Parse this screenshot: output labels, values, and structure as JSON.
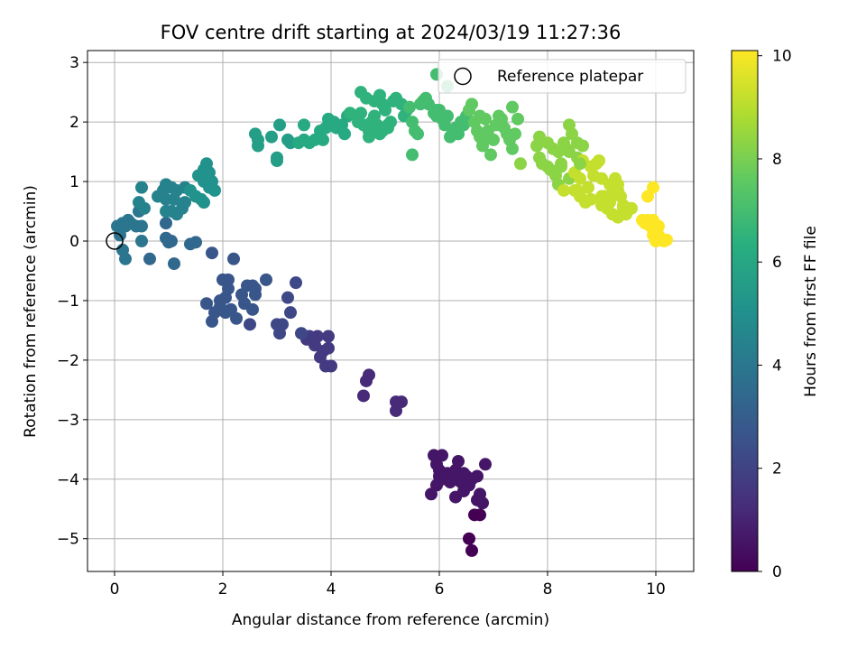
{
  "chart_data": {
    "type": "scatter",
    "title": "FOV centre drift starting at 2024/03/19 11:27:36",
    "xlabel": "Angular distance from reference (arcmin)",
    "ylabel": "Rotation from reference (arcmin)",
    "xlim": [
      -0.5,
      10.7
    ],
    "ylim": [
      -5.55,
      3.2
    ],
    "xticks": [
      0,
      2,
      4,
      6,
      8,
      10
    ],
    "yticks": [
      -5,
      -4,
      -3,
      -2,
      -1,
      0,
      1,
      2,
      3
    ],
    "grid": true,
    "legend": {
      "position": "top-right",
      "entries": [
        {
          "label": "Reference platepar",
          "marker": "open-circle",
          "x": 0,
          "y": 0
        }
      ]
    },
    "colorbar": {
      "label": "Hours from first FF file",
      "range": [
        0,
        10.1
      ],
      "ticks": [
        0,
        2,
        4,
        6,
        8,
        10
      ],
      "colormap": "viridis"
    },
    "point_color_encodes": "Hours from first FF file",
    "series": [
      {
        "points": [
          [
            6.6,
            -5.2
          ],
          [
            6.55,
            -5.0
          ],
          [
            6.65,
            -4.6
          ],
          [
            6.75,
            -4.6
          ],
          [
            6.8,
            -4.4
          ],
          [
            6.7,
            -4.35
          ],
          [
            6.75,
            -4.25
          ],
          [
            6.45,
            -4.2
          ],
          [
            6.3,
            -4.3
          ],
          [
            5.85,
            -4.25
          ],
          [
            5.95,
            -4.1
          ],
          [
            6.05,
            -4.0
          ],
          [
            6.2,
            -4.05
          ],
          [
            6.25,
            -3.95
          ],
          [
            6.35,
            -4.0
          ],
          [
            6.4,
            -4.05
          ],
          [
            6.5,
            -3.95
          ],
          [
            6.55,
            -4.1
          ],
          [
            6.6,
            -4.0
          ],
          [
            6.7,
            -3.95
          ],
          [
            6.45,
            -3.9
          ],
          [
            6.3,
            -3.85
          ],
          [
            6.15,
            -3.9
          ],
          [
            6.0,
            -3.85
          ],
          [
            5.95,
            -3.75
          ],
          [
            5.9,
            -3.6
          ],
          [
            6.05,
            -3.6
          ],
          [
            6.35,
            -3.7
          ],
          [
            6.85,
            -3.75
          ],
          [
            6.0,
            -3.95
          ],
          [
            5.2,
            -2.85
          ],
          [
            5.2,
            -2.7
          ],
          [
            5.3,
            -2.7
          ],
          [
            4.6,
            -2.6
          ],
          [
            4.65,
            -2.35
          ],
          [
            4.7,
            -2.25
          ],
          [
            3.9,
            -2.1
          ],
          [
            4.0,
            -2.1
          ],
          [
            3.8,
            -1.95
          ],
          [
            3.85,
            -1.85
          ],
          [
            3.95,
            -1.8
          ],
          [
            3.7,
            -1.75
          ],
          [
            3.75,
            -1.6
          ],
          [
            3.55,
            -1.65
          ],
          [
            3.6,
            -1.6
          ],
          [
            3.45,
            -1.55
          ],
          [
            3.95,
            -1.6
          ],
          [
            3.05,
            -1.55
          ],
          [
            3.05,
            -1.45
          ],
          [
            3.1,
            -1.4
          ],
          [
            3.0,
            -1.4
          ],
          [
            3.25,
            -1.2
          ],
          [
            3.2,
            -0.95
          ],
          [
            3.35,
            -0.7
          ],
          [
            2.8,
            -0.65
          ],
          [
            2.6,
            -0.8
          ],
          [
            2.6,
            -0.9
          ],
          [
            2.55,
            -1.15
          ],
          [
            2.5,
            -1.4
          ],
          [
            2.4,
            -1.05
          ],
          [
            2.35,
            -0.9
          ],
          [
            2.45,
            -0.75
          ],
          [
            2.55,
            -0.75
          ],
          [
            2.25,
            -1.3
          ],
          [
            2.15,
            -1.15
          ],
          [
            2.05,
            -1.2
          ],
          [
            1.95,
            -1.1
          ],
          [
            1.95,
            -1.0
          ],
          [
            1.85,
            -1.2
          ],
          [
            1.8,
            -1.35
          ],
          [
            1.7,
            -1.05
          ],
          [
            2.0,
            -0.65
          ],
          [
            2.1,
            -0.65
          ],
          [
            2.1,
            -0.8
          ],
          [
            2.05,
            -0.95
          ],
          [
            2.2,
            -0.3
          ],
          [
            1.8,
            -0.2
          ],
          [
            1.5,
            -0.02
          ],
          [
            1.4,
            -0.05
          ],
          [
            1.05,
            0.0
          ],
          [
            0.95,
            0.05
          ],
          [
            1.0,
            -0.02
          ],
          [
            0.65,
            -0.3
          ],
          [
            1.1,
            -0.38
          ],
          [
            0.5,
            0.0
          ],
          [
            0.2,
            -0.3
          ],
          [
            0.15,
            -0.15
          ],
          [
            0.2,
            0.25
          ],
          [
            0.3,
            0.3
          ],
          [
            0.25,
            0.35
          ],
          [
            0.15,
            0.3
          ],
          [
            0.05,
            0.25
          ],
          [
            0.1,
            0.1
          ],
          [
            0.4,
            0.25
          ],
          [
            0.5,
            0.25
          ],
          [
            0.45,
            0.5
          ],
          [
            0.55,
            0.55
          ],
          [
            0.45,
            0.65
          ],
          [
            0.5,
            0.9
          ],
          [
            0.95,
            0.3
          ],
          [
            0.95,
            0.5
          ],
          [
            1.05,
            0.5
          ],
          [
            1.15,
            0.45
          ],
          [
            1.25,
            0.55
          ],
          [
            1.3,
            0.65
          ],
          [
            1.1,
            0.7
          ],
          [
            0.95,
            0.7
          ],
          [
            0.8,
            0.75
          ],
          [
            0.9,
            0.85
          ],
          [
            0.95,
            0.95
          ],
          [
            1.05,
            0.9
          ],
          [
            1.15,
            0.85
          ],
          [
            1.3,
            0.9
          ],
          [
            1.4,
            0.85
          ],
          [
            1.5,
            0.75
          ],
          [
            1.6,
            0.7
          ],
          [
            1.65,
            0.65
          ],
          [
            1.55,
            1.1
          ],
          [
            1.65,
            1.2
          ],
          [
            1.7,
            1.3
          ],
          [
            1.75,
            1.15
          ],
          [
            1.65,
            1.0
          ],
          [
            1.75,
            0.9
          ],
          [
            1.85,
            0.85
          ],
          [
            1.8,
            1.0
          ],
          [
            1.7,
            1.05
          ],
          [
            2.6,
            1.8
          ],
          [
            2.65,
            1.6
          ],
          [
            2.65,
            1.7
          ],
          [
            2.9,
            1.75
          ],
          [
            3.05,
            1.95
          ],
          [
            3.0,
            1.4
          ],
          [
            3.0,
            1.35
          ],
          [
            3.2,
            1.7
          ],
          [
            3.25,
            1.65
          ],
          [
            3.4,
            1.65
          ],
          [
            3.5,
            1.7
          ],
          [
            3.6,
            1.65
          ],
          [
            3.7,
            1.7
          ],
          [
            3.5,
            1.95
          ],
          [
            3.8,
            1.85
          ],
          [
            3.85,
            1.7
          ],
          [
            3.9,
            1.9
          ],
          [
            3.95,
            2.05
          ],
          [
            4.0,
            1.95
          ],
          [
            4.05,
            2.0
          ],
          [
            4.1,
            1.9
          ],
          [
            4.2,
            1.95
          ],
          [
            4.25,
            1.8
          ],
          [
            4.3,
            2.1
          ],
          [
            4.35,
            2.15
          ],
          [
            4.5,
            2.0
          ],
          [
            4.55,
            2.15
          ],
          [
            4.6,
            1.95
          ],
          [
            4.7,
            1.75
          ],
          [
            4.7,
            1.85
          ],
          [
            4.75,
            2.0
          ],
          [
            4.8,
            2.1
          ],
          [
            4.85,
            1.95
          ],
          [
            4.9,
            1.8
          ],
          [
            4.95,
            1.85
          ],
          [
            5.0,
            1.9
          ],
          [
            5.05,
            1.95
          ],
          [
            5.1,
            2.0
          ],
          [
            4.55,
            2.5
          ],
          [
            4.65,
            2.4
          ],
          [
            4.8,
            2.35
          ],
          [
            4.9,
            2.45
          ],
          [
            4.95,
            2.3
          ],
          [
            5.0,
            2.2
          ],
          [
            5.15,
            2.35
          ],
          [
            5.2,
            2.4
          ],
          [
            5.3,
            2.3
          ],
          [
            5.35,
            2.1
          ],
          [
            5.4,
            2.2
          ],
          [
            5.45,
            2.25
          ],
          [
            5.5,
            2.0
          ],
          [
            5.55,
            1.85
          ],
          [
            5.6,
            1.8
          ],
          [
            5.5,
            1.45
          ],
          [
            5.65,
            2.3
          ],
          [
            5.7,
            2.35
          ],
          [
            5.75,
            2.4
          ],
          [
            5.8,
            2.3
          ],
          [
            5.9,
            2.15
          ],
          [
            5.95,
            2.1
          ],
          [
            6.0,
            2.2
          ],
          [
            6.05,
            2.05
          ],
          [
            6.1,
            1.95
          ],
          [
            6.15,
            2.1
          ],
          [
            6.2,
            1.75
          ],
          [
            6.25,
            1.85
          ],
          [
            6.3,
            1.9
          ],
          [
            6.35,
            1.8
          ],
          [
            6.4,
            2.0
          ],
          [
            6.45,
            1.95
          ],
          [
            6.5,
            2.1
          ],
          [
            6.55,
            2.2
          ],
          [
            6.6,
            2.3
          ],
          [
            6.65,
            2.0
          ],
          [
            6.7,
            1.85
          ],
          [
            6.75,
            1.75
          ],
          [
            6.8,
            1.6
          ],
          [
            6.85,
            1.75
          ],
          [
            6.9,
            1.85
          ],
          [
            6.95,
            1.45
          ],
          [
            7.0,
            1.7
          ],
          [
            7.05,
            1.95
          ],
          [
            7.1,
            2.1
          ],
          [
            7.15,
            2.05
          ],
          [
            7.2,
            1.9
          ],
          [
            7.25,
            1.8
          ],
          [
            7.3,
            1.7
          ],
          [
            7.35,
            1.55
          ],
          [
            7.4,
            1.8
          ],
          [
            7.45,
            2.05
          ],
          [
            7.5,
            1.3
          ],
          [
            6.75,
            2.1
          ],
          [
            6.85,
            2.05
          ],
          [
            5.95,
            2.8
          ],
          [
            6.15,
            2.6
          ],
          [
            7.35,
            2.25
          ],
          [
            6.0,
            2.15
          ],
          [
            5.05,
            1.9
          ],
          [
            5.95,
            2.2
          ],
          [
            7.85,
            1.75
          ],
          [
            7.8,
            1.6
          ],
          [
            7.85,
            1.4
          ],
          [
            7.9,
            1.3
          ],
          [
            8.0,
            1.65
          ],
          [
            8.0,
            1.25
          ],
          [
            8.05,
            1.2
          ],
          [
            8.1,
            1.55
          ],
          [
            8.15,
            1.1
          ],
          [
            8.2,
            1.5
          ],
          [
            8.2,
            0.95
          ],
          [
            8.25,
            1.3
          ],
          [
            8.3,
            0.85
          ],
          [
            8.3,
            1.65
          ],
          [
            8.35,
            1.55
          ],
          [
            8.4,
            1.05
          ],
          [
            8.4,
            1.95
          ],
          [
            8.45,
            1.8
          ],
          [
            8.5,
            0.85
          ],
          [
            8.5,
            1.15
          ],
          [
            8.55,
            1.4
          ],
          [
            8.55,
            1.65
          ],
          [
            8.6,
            0.75
          ],
          [
            8.6,
            1.05
          ],
          [
            8.65,
            1.35
          ],
          [
            8.65,
            1.6
          ],
          [
            8.7,
            0.65
          ],
          [
            8.75,
            0.9
          ],
          [
            8.8,
            1.25
          ],
          [
            8.85,
            1.1
          ],
          [
            8.9,
            1.3
          ],
          [
            8.95,
            1.35
          ],
          [
            9.0,
            1.05
          ],
          [
            9.0,
            0.6
          ],
          [
            9.05,
            0.75
          ],
          [
            9.1,
            0.55
          ],
          [
            9.15,
            0.65
          ],
          [
            9.2,
            0.45
          ],
          [
            9.2,
            0.8
          ],
          [
            9.25,
            1.05
          ],
          [
            9.3,
            0.4
          ],
          [
            9.3,
            0.85
          ],
          [
            9.35,
            0.75
          ],
          [
            9.4,
            0.6
          ],
          [
            9.4,
            0.55
          ],
          [
            9.45,
            0.45
          ],
          [
            9.3,
            0.95
          ],
          [
            9.15,
            0.95
          ],
          [
            8.8,
            0.7
          ],
          [
            8.55,
            0.85
          ],
          [
            9.75,
            0.35
          ],
          [
            9.8,
            0.3
          ],
          [
            9.85,
            0.35
          ],
          [
            9.9,
            0.25
          ],
          [
            9.95,
            0.35
          ],
          [
            10.0,
            0.2
          ],
          [
            10.05,
            0.1
          ],
          [
            10.05,
            0.25
          ],
          [
            9.95,
            0.1
          ],
          [
            10.0,
            0.05
          ],
          [
            10.1,
            0.02
          ],
          [
            10.15,
            0.0
          ],
          [
            10.0,
            0.0
          ],
          [
            10.2,
            0.02
          ],
          [
            9.95,
            0.9
          ],
          [
            9.85,
            0.75
          ],
          [
            9.55,
            0.55
          ],
          [
            9.1,
            0.7
          ],
          [
            9.0,
            0.75
          ],
          [
            8.6,
            1.3
          ],
          [
            8.4,
            1.5
          ],
          [
            8.25,
            1.25
          ]
        ]
      }
    ]
  }
}
